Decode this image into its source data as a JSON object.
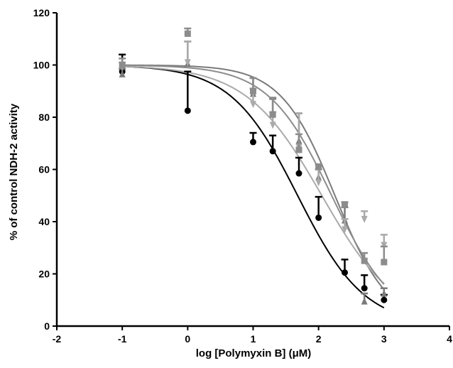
{
  "chart_data": {
    "type": "scatter",
    "title": "",
    "xlabel": "log [Polymyxin B] (μM)",
    "ylabel": "% of control NDH-2 activity",
    "xlim": [
      -2,
      4
    ],
    "ylim": [
      0,
      120
    ],
    "xticks": [
      "-2",
      "-1",
      "0",
      "1",
      "2",
      "3",
      "4"
    ],
    "yticks": [
      "0",
      "20",
      "40",
      "60",
      "80",
      "100",
      "120"
    ],
    "grid": false,
    "legend": "none",
    "series": [
      {
        "marker": "circle",
        "color": "#000000",
        "x": [
          -1,
          0,
          1,
          1.3,
          1.7,
          2,
          2.4,
          2.7,
          3
        ],
        "y": [
          97.5,
          82.5,
          70.5,
          67,
          58.5,
          41.5,
          20.5,
          14.5,
          10
        ],
        "err": [
          6.5,
          15,
          3.5,
          6,
          6,
          8,
          5,
          5,
          2
        ],
        "fit": {
          "top": 100,
          "bottom": 0,
          "logIC50": 1.68,
          "hill": 0.85
        }
      },
      {
        "marker": "triangle-up",
        "color": "#7a7a7a",
        "x": [
          -1,
          0,
          1,
          1.3,
          1.7,
          2,
          2.4,
          2.7,
          3
        ],
        "y": [
          96.5,
          100.5,
          89,
          81.5,
          71,
          57,
          40.5,
          9.5,
          12.5
        ],
        "err": [
          2,
          8.5,
          6,
          5.5,
          10.5,
          3,
          5,
          3,
          2
        ],
        "fit": {
          "top": 100,
          "bottom": 0,
          "logIC50": 2.25,
          "hill": 1.05
        }
      },
      {
        "marker": "triangle-down",
        "color": "#aaaaaa",
        "x": [
          -1,
          0,
          1,
          1.3,
          1.7,
          2,
          2.4,
          2.7,
          3
        ],
        "y": [
          99.5,
          101,
          85,
          77,
          68.5,
          55,
          37,
          41,
          31
        ],
        "err": [
          1.5,
          8,
          6,
          5,
          13,
          5,
          4,
          3,
          4
        ],
        "fit": {
          "top": 100,
          "bottom": 0,
          "logIC50": 2.05,
          "hill": 0.75
        }
      },
      {
        "marker": "square",
        "color": "#8c8c8c",
        "x": [
          -1,
          0,
          1,
          1.3,
          1.7,
          2,
          2.4,
          2.7,
          3
        ],
        "y": [
          100,
          112,
          90,
          81,
          67.5,
          61,
          46.5,
          25,
          24.5
        ],
        "err": [
          2.5,
          2,
          5,
          6.5,
          6,
          1,
          1,
          3,
          6
        ],
        "fit": {
          "top": 100,
          "bottom": 0,
          "logIC50": 2.2,
          "hill": 0.9
        }
      }
    ]
  }
}
